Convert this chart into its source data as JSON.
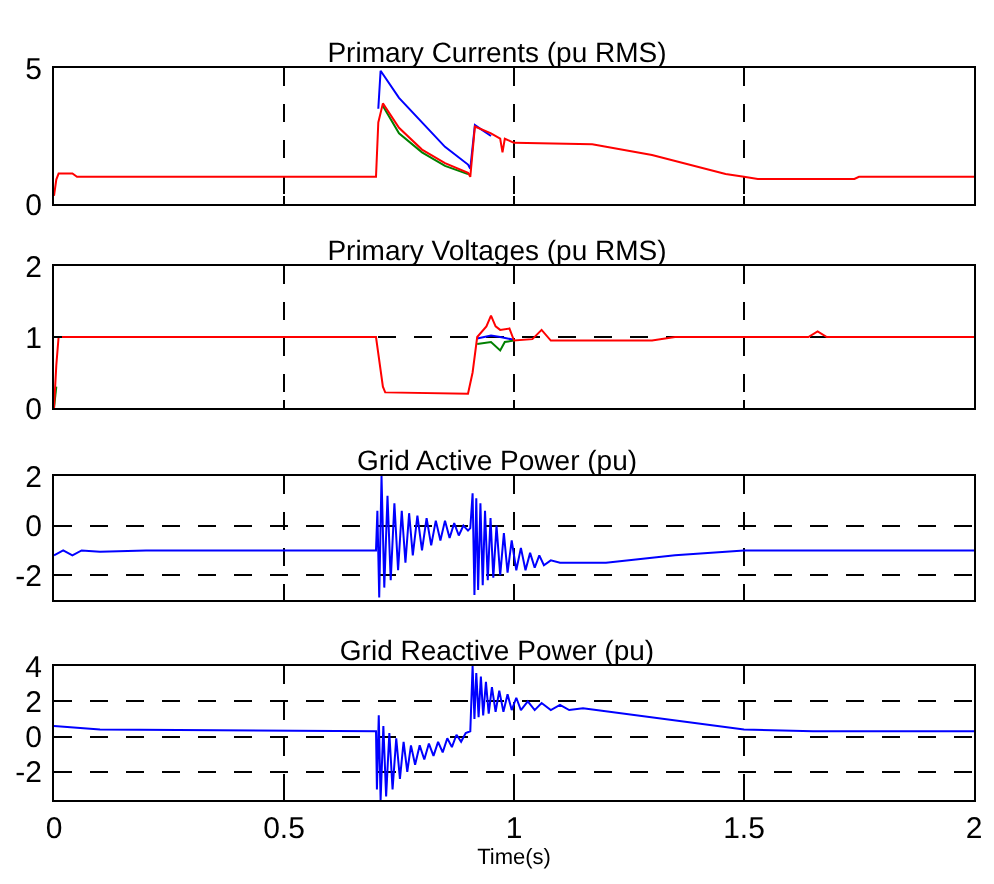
{
  "chart_data": [
    {
      "type": "line",
      "title": "Primary Currents (pu RMS)",
      "xlim": [
        0,
        2
      ],
      "xticks": [
        0,
        0.5,
        1,
        1.5,
        2
      ],
      "ylim": [
        0,
        5
      ],
      "yticks": [
        0,
        5
      ],
      "grid": true,
      "tick_labels": "y",
      "series": [
        {
          "color": "#0000ff",
          "x": [
            0.705,
            0.71,
            0.75,
            0.8,
            0.85,
            0.9,
            0.905,
            0.915,
            0.95
          ],
          "values": [
            3.5,
            4.9,
            3.9,
            3.0,
            2.1,
            1.45,
            1.3,
            2.9,
            2.5
          ]
        },
        {
          "color": "#008000",
          "x": [
            0.715,
            0.75,
            0.8,
            0.85,
            0.9
          ],
          "values": [
            3.6,
            2.6,
            1.9,
            1.4,
            1.1
          ]
        },
        {
          "color": "#ff0000",
          "x": [
            0,
            0.005,
            0.01,
            0.04,
            0.05,
            0.7,
            0.705,
            0.715,
            0.75,
            0.8,
            0.85,
            0.9,
            0.905,
            0.915,
            0.95,
            0.97,
            0.975,
            0.98,
            1.0,
            1.17,
            1.3,
            1.46,
            1.5,
            1.53,
            1.74,
            1.75,
            2
          ],
          "values": [
            0.3,
            0.9,
            1.12,
            1.12,
            1.0,
            1.0,
            3.0,
            3.7,
            2.8,
            2.0,
            1.5,
            1.15,
            1.0,
            2.85,
            2.6,
            2.4,
            1.9,
            2.4,
            2.25,
            2.2,
            1.8,
            1.1,
            1.0,
            0.92,
            0.92,
            1.0,
            1.0
          ]
        }
      ]
    },
    {
      "type": "line",
      "title": "Primary Voltages (pu RMS)",
      "xlim": [
        0,
        2
      ],
      "xticks": [
        0,
        0.5,
        1,
        1.5,
        2
      ],
      "ylim": [
        0,
        2
      ],
      "yticks": [
        0,
        1,
        2
      ],
      "grid": true,
      "tick_labels": "y",
      "series": [
        {
          "color": "#0000ff",
          "x": [
            0.92,
            0.95,
            0.97,
            1.0
          ],
          "values": [
            0.98,
            1.02,
            1.0,
            0.96
          ]
        },
        {
          "color": "#008000",
          "x": [
            0,
            0.005,
            0.008,
            0.92,
            0.95,
            0.97,
            0.98,
            1.0
          ],
          "values": [
            0,
            0.3,
            null,
            0.9,
            0.93,
            0.81,
            0.93,
            0.95
          ]
        },
        {
          "color": "#ff0000",
          "x": [
            0,
            0.005,
            0.01,
            0.7,
            0.715,
            0.72,
            0.9,
            0.91,
            0.92,
            0.94,
            0.95,
            0.96,
            0.97,
            0.99,
            1.0,
            1.04,
            1.06,
            1.08,
            1.1,
            1.3,
            1.35,
            1.64,
            1.66,
            1.68,
            2
          ],
          "values": [
            0,
            0.6,
            1.0,
            1.0,
            0.3,
            0.22,
            0.2,
            0.5,
            1.0,
            1.15,
            1.3,
            1.15,
            1.1,
            1.12,
            0.95,
            0.97,
            1.1,
            0.95,
            0.95,
            0.95,
            1.0,
            1.0,
            1.08,
            1.0,
            1.0
          ]
        }
      ]
    },
    {
      "type": "line",
      "title": "Grid Active Power (pu)",
      "xlim": [
        0,
        2
      ],
      "xticks": [
        0,
        0.5,
        1,
        1.5,
        2
      ],
      "ylim": [
        -3,
        2
      ],
      "yticks": [
        -2,
        0,
        2
      ],
      "grid": true,
      "tick_labels": "y",
      "series": [
        {
          "color": "#0000ff",
          "x": [
            0,
            0.02,
            0.04,
            0.06,
            0.1,
            0.2,
            0.7,
            0.703,
            0.707,
            0.712,
            0.718,
            0.725,
            0.732,
            0.74,
            0.748,
            0.756,
            0.764,
            0.772,
            0.78,
            0.79,
            0.8,
            0.81,
            0.82,
            0.83,
            0.84,
            0.85,
            0.86,
            0.87,
            0.88,
            0.89,
            0.9,
            0.905,
            0.91,
            0.914,
            0.918,
            0.922,
            0.927,
            0.932,
            0.937,
            0.943,
            0.949,
            0.955,
            0.962,
            0.97,
            0.978,
            0.986,
            0.995,
            1.005,
            1.015,
            1.025,
            1.035,
            1.045,
            1.055,
            1.065,
            1.08,
            1.1,
            1.2,
            1.35,
            1.5,
            2
          ],
          "values": [
            -1.2,
            -1.0,
            -1.2,
            -1.0,
            -1.05,
            -1.0,
            -1.0,
            0.6,
            -2.9,
            2.0,
            -2.5,
            1.2,
            -2.2,
            0.9,
            -1.8,
            0.6,
            -1.5,
            0.5,
            -1.2,
            0.4,
            -1.0,
            0.3,
            -0.8,
            0.2,
            -0.6,
            0.2,
            -0.5,
            0.1,
            -0.4,
            0.0,
            -0.2,
            -0.1,
            1.3,
            -2.8,
            1.1,
            -2.6,
            0.9,
            -2.4,
            0.6,
            -2.2,
            0.3,
            -2.1,
            0.0,
            -2.0,
            -0.3,
            -1.9,
            -0.6,
            -1.8,
            -0.9,
            -1.8,
            -1.1,
            -1.7,
            -1.2,
            -1.6,
            -1.4,
            -1.5,
            -1.5,
            -1.2,
            -1.0,
            -1.0
          ]
        }
      ]
    },
    {
      "type": "line",
      "title": "Grid Reactive Power (pu)",
      "xlabel": "Time(s)",
      "xlim": [
        0,
        2
      ],
      "xticks": [
        0,
        0.5,
        1,
        1.5,
        2
      ],
      "ylim": [
        -3.6,
        4
      ],
      "yticks": [
        -2,
        0,
        2,
        4
      ],
      "grid": true,
      "series": [
        {
          "color": "#0000ff",
          "x": [
            0,
            0.1,
            0.7,
            0.702,
            0.706,
            0.71,
            0.716,
            0.722,
            0.729,
            0.736,
            0.744,
            0.752,
            0.76,
            0.768,
            0.776,
            0.785,
            0.795,
            0.805,
            0.815,
            0.825,
            0.835,
            0.845,
            0.855,
            0.865,
            0.875,
            0.885,
            0.895,
            0.905,
            0.91,
            0.914,
            0.918,
            0.923,
            0.928,
            0.933,
            0.939,
            0.945,
            0.952,
            0.96,
            0.968,
            0.977,
            0.986,
            0.995,
            1.005,
            1.015,
            1.03,
            1.045,
            1.06,
            1.08,
            1.1,
            1.12,
            1.15,
            1.5,
            1.65,
            2
          ],
          "values": [
            0.6,
            0.4,
            0.3,
            -3.0,
            1.2,
            -3.6,
            0.6,
            -3.4,
            0.2,
            -3.0,
            -0.1,
            -2.4,
            -0.3,
            -2.0,
            -0.5,
            -1.6,
            -0.5,
            -1.3,
            -0.4,
            -1.1,
            -0.3,
            -0.9,
            -0.1,
            -0.6,
            0.1,
            -0.3,
            0.2,
            0.3,
            4.0,
            1.0,
            3.6,
            1.1,
            3.4,
            1.2,
            3.1,
            1.3,
            2.8,
            1.4,
            2.6,
            1.4,
            2.4,
            1.5,
            2.2,
            1.5,
            2.0,
            1.5,
            1.9,
            1.5,
            1.8,
            1.5,
            1.6,
            0.4,
            0.3,
            0.3
          ]
        }
      ]
    }
  ]
}
